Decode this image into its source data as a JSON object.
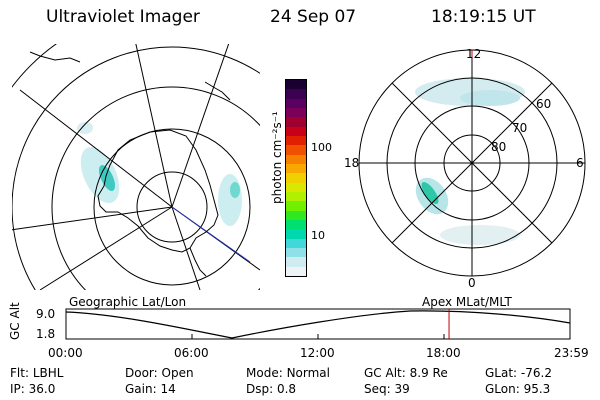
{
  "header": {
    "instrument": "Ultraviolet Imager",
    "date": "24 Sep 07",
    "time": "18:19:15 UT"
  },
  "left_map": {
    "caption": "Geographic Lat/Lon"
  },
  "right_map": {
    "caption": "Apex MLat/MLT",
    "mlt_labels": {
      "top": "12",
      "left": "18",
      "right": "6",
      "bottom": "0"
    },
    "lat_labels": [
      "60",
      "70",
      "80"
    ]
  },
  "colorbar": {
    "unit_label": "photon cm⁻²s⁻¹",
    "ticks": [
      "100",
      "10"
    ],
    "colors": [
      "#1a0030",
      "#3b0050",
      "#5a0060",
      "#7a0058",
      "#a00030",
      "#c8001a",
      "#e02000",
      "#f05000",
      "#f88000",
      "#f8a800",
      "#f0d000",
      "#d8e800",
      "#b0f000",
      "#70f000",
      "#30e820",
      "#00e070",
      "#00d8b0",
      "#40d8d8",
      "#90e0e8",
      "#d0ecf0",
      "#eef4f6"
    ]
  },
  "altitude_plot": {
    "ylabel": "GC Alt",
    "yticks": [
      "9.0",
      "1.8"
    ],
    "xticks": [
      "00:00",
      "06:00",
      "12:00",
      "18:00",
      "23:59"
    ],
    "current_time_fraction": 0.76
  },
  "status": {
    "row1": [
      {
        "label": "Flt:",
        "value": "LBHL"
      },
      {
        "label": "Door:",
        "value": "Open"
      },
      {
        "label": "Mode:",
        "value": "Normal"
      },
      {
        "label": "GC Alt:",
        "value": "8.9 Re"
      },
      {
        "label": "GLat:",
        "value": "-76.2"
      }
    ],
    "row2": [
      {
        "label": "IP:",
        "value": "36.0"
      },
      {
        "label": "Gain:",
        "value": "14"
      },
      {
        "label": "Dsp:",
        "value": "0.8"
      },
      {
        "label": "Seq:",
        "value": "39"
      },
      {
        "label": "GLon:",
        "value": "95.3"
      }
    ]
  }
}
